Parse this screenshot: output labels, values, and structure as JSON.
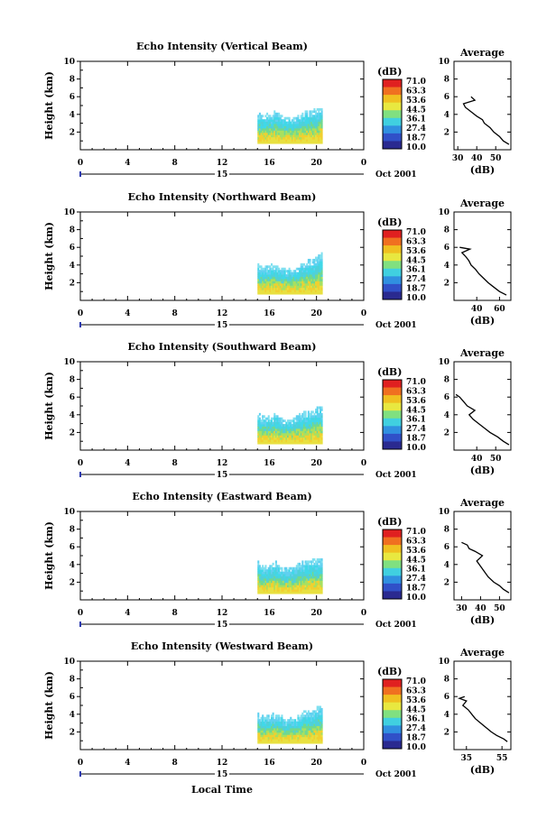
{
  "figure": {
    "date_label": "Oct 2001",
    "bottom_xlabel": "Local Time",
    "colorbar_unit": "(dB)",
    "colorbar_ticks": [
      "71.0",
      "63.3",
      "53.6",
      "44.5",
      "36.1",
      "27.4",
      "18.7",
      "10.0"
    ],
    "colorbar_colors": [
      "#e02020",
      "#f07020",
      "#f0c020",
      "#e8e840",
      "#80e080",
      "#40d0e0",
      "#3090e0",
      "#3050c8",
      "#2a2a90"
    ]
  },
  "chart_data": [
    {
      "type": "heatmap",
      "title": "Echo Intensity (Vertical Beam)",
      "ylabel": "Height (km)",
      "xlabel": "",
      "ylim": [
        0,
        10
      ],
      "yticks": [
        2,
        4,
        6,
        8,
        10
      ],
      "xlim": [
        0,
        24
      ],
      "xticks": [
        "0",
        "4",
        "8",
        "12",
        "16",
        "20",
        "0"
      ],
      "day_label": "15",
      "data_time_range": [
        15,
        20.5
      ],
      "echo_top_km": [
        4.2,
        3.9,
        4.3,
        3.5,
        3.6,
        4.4,
        4.6,
        5.0
      ],
      "profile": {
        "title": "Average",
        "xlabel": "(dB)",
        "xticks": [
          "30",
          "40",
          "50"
        ],
        "xlim": [
          28,
          58
        ],
        "ylim": [
          0,
          10
        ],
        "yticks": [
          2,
          4,
          6,
          8,
          10
        ],
        "height_km": [
          0.6,
          1.0,
          1.5,
          2.0,
          2.5,
          3.0,
          3.4,
          3.8,
          4.3,
          4.8,
          5.2,
          5.6,
          6.0
        ],
        "value_db": [
          57,
          54,
          52,
          49,
          47,
          44,
          43,
          40,
          37,
          34,
          33,
          39,
          37
        ]
      }
    },
    {
      "type": "heatmap",
      "title": "Echo Intensity (Northward Beam)",
      "ylabel": "Height (km)",
      "xlabel": "",
      "ylim": [
        0,
        10
      ],
      "yticks": [
        2,
        4,
        6,
        8,
        10
      ],
      "xlim": [
        0,
        24
      ],
      "xticks": [
        "0",
        "4",
        "8",
        "12",
        "16",
        "20",
        "0"
      ],
      "day_label": "15",
      "data_time_range": [
        15,
        20.5
      ],
      "echo_top_km": [
        4.0,
        3.8,
        4.2,
        3.4,
        3.6,
        4.2,
        4.8,
        5.4
      ],
      "profile": {
        "title": "Average",
        "xlabel": "(dB)",
        "xticks": [
          "40",
          "60"
        ],
        "xlim": [
          20,
          70
        ],
        "ylim": [
          0,
          10
        ],
        "yticks": [
          2,
          4,
          6,
          8,
          10
        ],
        "height_km": [
          0.6,
          1.0,
          1.5,
          2.0,
          2.5,
          3.0,
          3.5,
          4.0,
          4.5,
          5.0,
          5.4,
          5.8,
          6.0
        ],
        "value_db": [
          66,
          60,
          55,
          50,
          46,
          42,
          39,
          35,
          33,
          30,
          27,
          34,
          25
        ]
      }
    },
    {
      "type": "heatmap",
      "title": "Echo Intensity (Southward Beam)",
      "ylabel": "Height (km)",
      "xlabel": "",
      "ylim": [
        0,
        10
      ],
      "yticks": [
        2,
        4,
        6,
        8,
        10
      ],
      "xlim": [
        0,
        24
      ],
      "xticks": [
        "0",
        "4",
        "8",
        "12",
        "16",
        "20",
        "0"
      ],
      "day_label": "15",
      "data_time_range": [
        15,
        20.5
      ],
      "echo_top_km": [
        4.0,
        3.8,
        4.1,
        3.4,
        3.6,
        4.3,
        4.6,
        5.0
      ],
      "profile": {
        "title": "Average",
        "xlabel": "(dB)",
        "xticks": [
          "40",
          "50"
        ],
        "xlim": [
          28,
          58
        ],
        "ylim": [
          0,
          10
        ],
        "yticks": [
          2,
          4,
          6,
          8,
          10
        ],
        "height_km": [
          0.6,
          1.0,
          1.5,
          2.0,
          2.5,
          3.0,
          3.5,
          4.0,
          4.5,
          5.0,
          5.5,
          6.0,
          6.3
        ],
        "value_db": [
          57,
          54,
          51,
          47,
          44,
          41,
          38,
          36,
          39,
          35,
          33,
          31,
          29
        ]
      }
    },
    {
      "type": "heatmap",
      "title": "Echo Intensity (Eastward Beam)",
      "ylabel": "Height (km)",
      "xlabel": "",
      "ylim": [
        0,
        10
      ],
      "yticks": [
        2,
        4,
        6,
        8,
        10
      ],
      "xlim": [
        0,
        24
      ],
      "xticks": [
        "0",
        "4",
        "8",
        "12",
        "16",
        "20",
        "0"
      ],
      "day_label": "15",
      "data_time_range": [
        15,
        20.5
      ],
      "echo_top_km": [
        4.2,
        3.8,
        4.3,
        3.5,
        3.8,
        4.4,
        4.6,
        4.7
      ],
      "profile": {
        "title": "Average",
        "xlabel": "(dB)",
        "xticks": [
          "30",
          "40",
          "50"
        ],
        "xlim": [
          26,
          56
        ],
        "ylim": [
          0,
          10
        ],
        "yticks": [
          2,
          4,
          6,
          8,
          10
        ],
        "height_km": [
          0.8,
          1.2,
          1.6,
          2.0,
          2.6,
          3.2,
          3.8,
          4.4,
          5.0,
          5.5,
          5.8,
          6.2,
          6.5
        ],
        "value_db": [
          55,
          52,
          50,
          47,
          44,
          42,
          40,
          38,
          41,
          37,
          34,
          33,
          30
        ]
      }
    },
    {
      "type": "heatmap",
      "title": "Echo Intensity (Westward Beam)",
      "ylabel": "Height (km)",
      "xlabel": "Local Time",
      "ylim": [
        0,
        10
      ],
      "yticks": [
        2,
        4,
        6,
        8,
        10
      ],
      "xlim": [
        0,
        24
      ],
      "xticks": [
        "0",
        "4",
        "8",
        "12",
        "16",
        "20",
        "0"
      ],
      "day_label": "15",
      "data_time_range": [
        15,
        20.5
      ],
      "echo_top_km": [
        4.2,
        3.8,
        4.1,
        3.4,
        3.6,
        4.2,
        4.5,
        5.2
      ],
      "profile": {
        "title": "Average",
        "xlabel": "(dB)",
        "xticks": [
          "35",
          "55"
        ],
        "xlim": [
          28,
          60
        ],
        "ylim": [
          0,
          10
        ],
        "yticks": [
          2,
          4,
          6,
          8,
          10
        ],
        "height_km": [
          0.9,
          1.2,
          1.6,
          2.0,
          2.5,
          3.0,
          3.5,
          4.0,
          4.5,
          5.0,
          5.5,
          5.8,
          6.0
        ],
        "value_db": [
          58,
          56,
          52,
          49,
          46,
          43,
          40,
          38,
          36,
          33,
          35,
          31,
          34
        ]
      }
    }
  ]
}
